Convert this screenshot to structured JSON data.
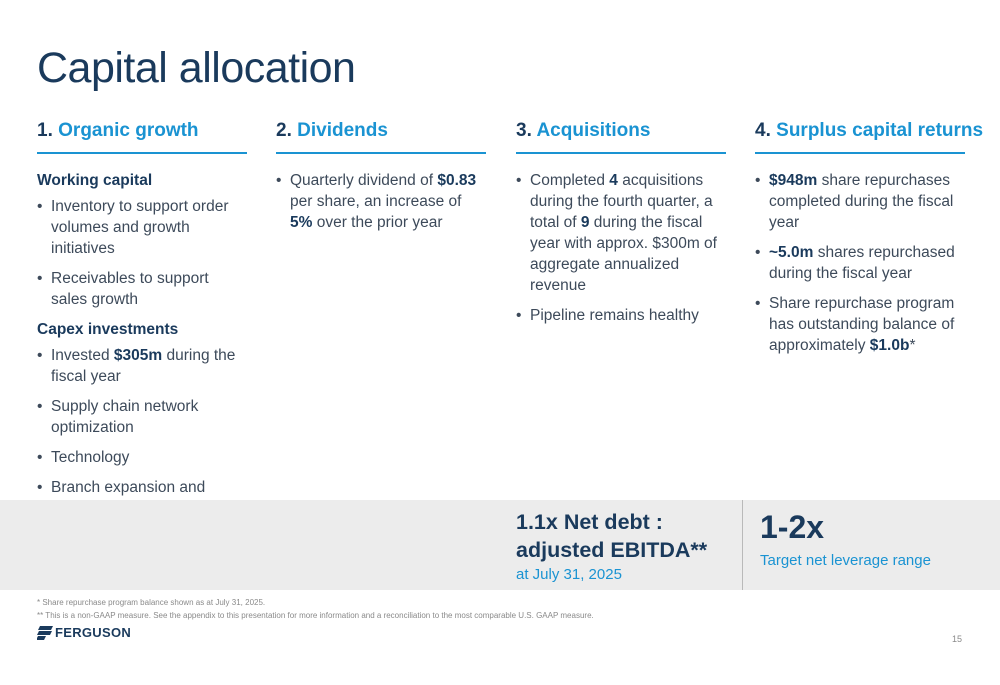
{
  "title": "Capital allocation",
  "columns": [
    {
      "num": "1.",
      "heading": "Organic growth",
      "sections": [
        {
          "subheading": "Working capital",
          "bullets": [
            {
              "pre": "Inventory to support order volumes and growth initiatives",
              "bold": "",
              "post": ""
            },
            {
              "pre": "Receivables to support sales growth",
              "bold": "",
              "post": ""
            }
          ]
        },
        {
          "subheading": "Capex investments",
          "bullets": [
            {
              "pre": "Invested ",
              "bold": "$305m",
              "post": " during the fiscal year"
            },
            {
              "pre": "Supply chain network optimization",
              "bold": "",
              "post": ""
            },
            {
              "pre": "Technology",
              "bold": "",
              "post": ""
            },
            {
              "pre": "Branch expansion and refurbishment",
              "bold": "",
              "post": ""
            }
          ]
        }
      ]
    },
    {
      "num": "2.",
      "heading": "Dividends",
      "bullets": [
        {
          "t1": "Quarterly dividend of ",
          "b1": "$0.83",
          "t2": " per share, an increase of ",
          "b2": "5%",
          "t3": " over the prior year"
        }
      ]
    },
    {
      "num": "3.",
      "heading": "Acquisitions",
      "bullets": [
        {
          "t1": "Completed ",
          "b1": "4",
          "t2": " acquisitions during the fourth quarter, a total of ",
          "b2": "9",
          "t3": " during the fiscal year with approx. $300m of aggregate annualized revenue"
        },
        {
          "t1": "Pipeline remains healthy",
          "b1": "",
          "t2": "",
          "b2": "",
          "t3": ""
        }
      ]
    },
    {
      "num": "4.",
      "heading": "Surplus capital returns",
      "bullets": [
        {
          "bold": "$948m",
          "post": " share repurchases completed during the fiscal year"
        },
        {
          "bold": "~5.0m",
          "post": " shares repurchased during the fiscal year"
        },
        {
          "pre": "Share repurchase program has outstanding balance of approximately ",
          "bold": "$1.0b",
          "post": "*"
        }
      ]
    }
  ],
  "metrics": {
    "leverage_line1": "1.1x Net debt :",
    "leverage_line2": "adjusted EBITDA**",
    "leverage_date": "at July 31, 2025",
    "target_value": "1-2x",
    "target_label": "Target net leverage range"
  },
  "footnotes": [
    "* Share repurchase program balance shown as at July 31, 2025.",
    "** This is a non-GAAP measure. See the appendix to this presentation for more information and a reconciliation to the most comparable U.S. GAAP measure."
  ],
  "logo_text": "FERGUSON",
  "page_number": "15",
  "colors": {
    "navy": "#1a3a5c",
    "accent_blue": "#1a93d2",
    "band_gray": "#ececec"
  }
}
